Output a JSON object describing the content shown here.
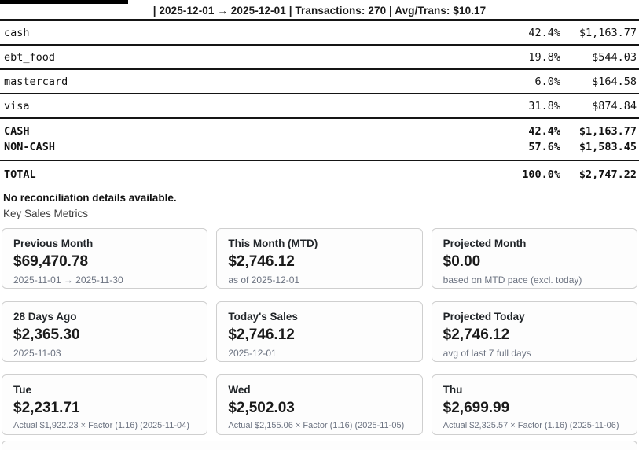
{
  "header": {
    "summary_line": "| 2025-12-01 → 2025-12-01 | Transactions: 270 | Avg/Trans: $10.17"
  },
  "payment_table": {
    "rows": [
      {
        "name": "cash",
        "pct": "42.4%",
        "amount": "$1,163.77"
      },
      {
        "name": "ebt_food",
        "pct": "19.8%",
        "amount": "$544.03"
      },
      {
        "name": "mastercard",
        "pct": "6.0%",
        "amount": "$164.58"
      },
      {
        "name": "visa",
        "pct": "31.8%",
        "amount": "$874.84"
      }
    ],
    "summary": [
      {
        "name": "CASH",
        "pct": "42.4%",
        "amount": "$1,163.77"
      },
      {
        "name": "NON-CASH",
        "pct": "57.6%",
        "amount": "$1,583.45"
      }
    ],
    "total": {
      "name": "TOTAL",
      "pct": "100.0%",
      "amount": "$2,747.22"
    }
  },
  "notes": {
    "reconciliation": "No reconciliation details available.",
    "section_title": "Key Sales Metrics"
  },
  "cards": [
    {
      "title": "Previous Month",
      "value": "$69,470.78",
      "sub": "2025-11-01 → 2025-11-30"
    },
    {
      "title": "This Month (MTD)",
      "value": "$2,746.12",
      "sub": "as of 2025-12-01"
    },
    {
      "title": "Projected Month",
      "value": "$0.00",
      "sub": "based on MTD pace (excl. today)"
    },
    {
      "title": "28 Days Ago",
      "value": "$2,365.30",
      "sub": "2025-11-03"
    },
    {
      "title": "Today's Sales",
      "value": "$2,746.12",
      "sub": "2025-12-01"
    },
    {
      "title": "Projected Today",
      "value": "$2,746.12",
      "sub": "avg of last 7 full days"
    },
    {
      "title": "Tue",
      "value": "$2,231.71",
      "sub": "Actual $1,922.23 × Factor (1.16) (2025-11-04)"
    },
    {
      "title": "Wed",
      "value": "$2,502.03",
      "sub": "Actual $2,155.06 × Factor (1.16) (2025-11-05)"
    },
    {
      "title": "Thu",
      "value": "$2,699.99",
      "sub": "Actual $2,325.57 × Factor (1.16) (2025-11-06)"
    }
  ],
  "colors": {
    "rule": "#151515",
    "card_border": "#cfcfcf",
    "muted_text": "#6b7280"
  }
}
